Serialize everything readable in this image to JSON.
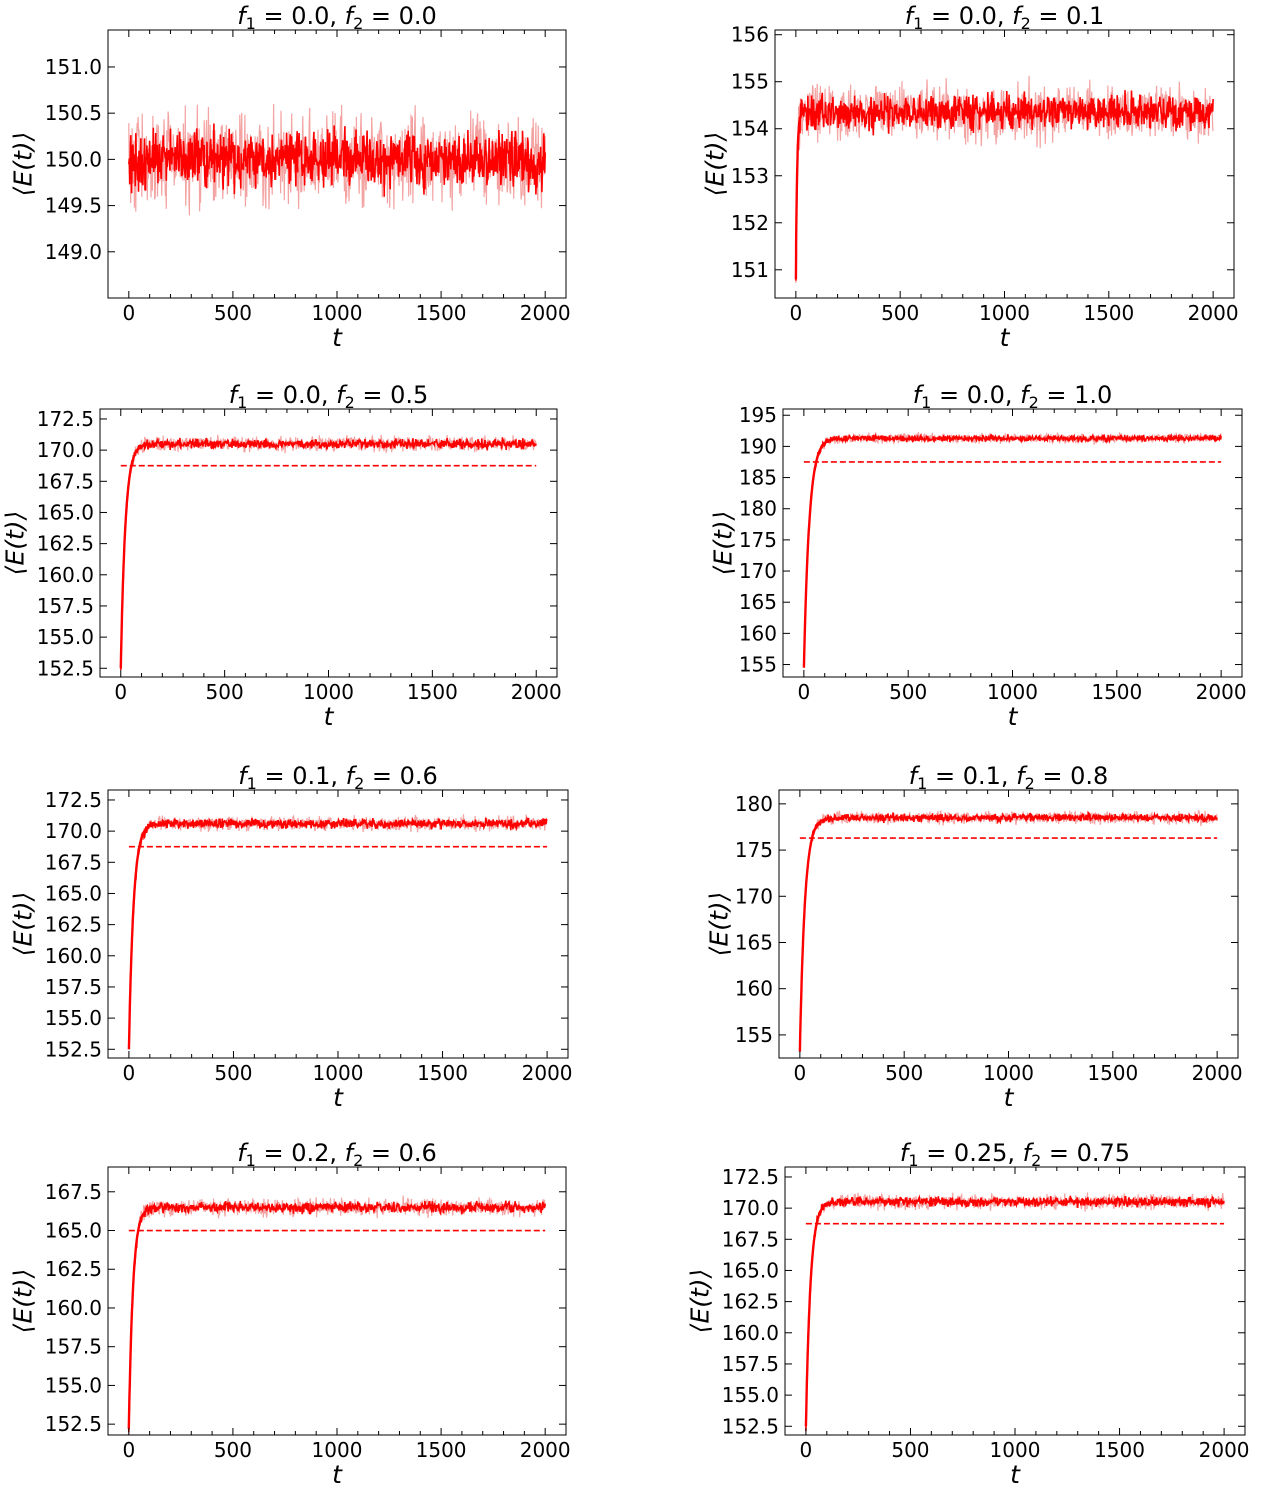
{
  "chart_data": [
    {
      "type": "line",
      "title_parts": [
        "f",
        "1",
        " = 0.0, ",
        "f",
        "2",
        " = 0.0"
      ],
      "xlabel": "t",
      "ylabel": "⟨E(t)⟩",
      "xlim": [
        -100,
        2100
      ],
      "ylim": [
        148.5,
        151.4
      ],
      "xticks": [
        0,
        500,
        1000,
        1500,
        2000
      ],
      "yticks": [
        149.0,
        149.5,
        150.0,
        150.5,
        151.0
      ],
      "ytick_labels": [
        "149.0",
        "149.5",
        "150.0",
        "150.5",
        "151.0"
      ],
      "series": [
        {
          "t_end": 2000,
          "start_value": 150.0,
          "plateau": 150.0,
          "tau": 1,
          "noise_core": 0.45,
          "noise_halo": 0.72,
          "color": "#ff0000"
        }
      ],
      "reference_line": null
    },
    {
      "type": "line",
      "title_parts": [
        "f",
        "1",
        " = 0.0, ",
        "f",
        "2",
        " = 0.1"
      ],
      "xlabel": "t",
      "ylabel": "⟨E(t)⟩",
      "xlim": [
        -100,
        2100
      ],
      "ylim": [
        150.4,
        156.1
      ],
      "xticks": [
        0,
        500,
        1000,
        1500,
        2000
      ],
      "yticks": [
        151,
        152,
        153,
        154,
        155,
        156
      ],
      "ytick_labels": [
        "151",
        "152",
        "153",
        "154",
        "155",
        "156"
      ],
      "series": [
        {
          "t_end": 2000,
          "start_value": 150.8,
          "plateau": 154.35,
          "tau": 6,
          "noise_core": 0.55,
          "noise_halo": 0.85,
          "color": "#ff0000"
        }
      ],
      "reference_line": null
    },
    {
      "type": "line",
      "title_parts": [
        "f",
        "1",
        " = 0.0, ",
        "f",
        "2",
        " = 0.5"
      ],
      "xlabel": "t",
      "ylabel": "⟨E(t)⟩",
      "xlim": [
        -100,
        2100
      ],
      "ylim": [
        151.8,
        173.3
      ],
      "xticks": [
        0,
        500,
        1000,
        1500,
        2000
      ],
      "yticks": [
        152.5,
        155.0,
        157.5,
        160.0,
        162.5,
        165.0,
        167.5,
        170.0,
        172.5
      ],
      "ytick_labels": [
        "152.5",
        "155.0",
        "157.5",
        "160.0",
        "162.5",
        "165.0",
        "167.5",
        "170.0",
        "172.5"
      ],
      "series": [
        {
          "t_end": 2000,
          "start_value": 152.5,
          "plateau": 170.5,
          "tau": 22,
          "noise_core": 0.55,
          "noise_halo": 0.85,
          "color": "#ff0000"
        }
      ],
      "reference_line": {
        "y": 168.75,
        "x_start": 0,
        "x_end": 2000,
        "style": "dashed",
        "color": "#ff0000"
      }
    },
    {
      "type": "line",
      "title_parts": [
        "f",
        "1",
        " = 0.0, ",
        "f",
        "2",
        " = 1.0"
      ],
      "xlabel": "t",
      "ylabel": "⟨E(t)⟩",
      "xlim": [
        -100,
        2100
      ],
      "ylim": [
        153.0,
        196.0
      ],
      "xticks": [
        0,
        500,
        1000,
        1500,
        2000
      ],
      "yticks": [
        155,
        160,
        165,
        170,
        175,
        180,
        185,
        190,
        195
      ],
      "ytick_labels": [
        "155",
        "160",
        "165",
        "170",
        "175",
        "180",
        "185",
        "190",
        "195"
      ],
      "series": [
        {
          "t_end": 2000,
          "start_value": 154.5,
          "plateau": 191.3,
          "tau": 26,
          "noise_core": 0.7,
          "noise_halo": 1.1,
          "color": "#ff0000"
        }
      ],
      "reference_line": {
        "y": 187.5,
        "x_start": 0,
        "x_end": 2000,
        "style": "dashed",
        "color": "#ff0000"
      }
    },
    {
      "type": "line",
      "title_parts": [
        "f",
        "1",
        " = 0.1, ",
        "f",
        "2",
        " = 0.6"
      ],
      "xlabel": "t",
      "ylabel": "⟨E(t)⟩",
      "xlim": [
        -100,
        2100
      ],
      "ylim": [
        151.8,
        173.3
      ],
      "xticks": [
        0,
        500,
        1000,
        1500,
        2000
      ],
      "yticks": [
        152.5,
        155.0,
        157.5,
        160.0,
        162.5,
        165.0,
        167.5,
        170.0,
        172.5
      ],
      "ytick_labels": [
        "152.5",
        "155.0",
        "157.5",
        "160.0",
        "162.5",
        "165.0",
        "167.5",
        "170.0",
        "172.5"
      ],
      "series": [
        {
          "t_end": 2000,
          "start_value": 152.5,
          "plateau": 170.6,
          "tau": 22,
          "noise_core": 0.55,
          "noise_halo": 0.85,
          "color": "#ff0000"
        }
      ],
      "reference_line": {
        "y": 168.75,
        "x_start": 0,
        "x_end": 2000,
        "style": "dashed",
        "color": "#ff0000"
      }
    },
    {
      "type": "line",
      "title_parts": [
        "f",
        "1",
        " = 0.1, ",
        "f",
        "2",
        " = 0.8"
      ],
      "xlabel": "t",
      "ylabel": "⟨E(t)⟩",
      "xlim": [
        -100,
        2100
      ],
      "ylim": [
        152.5,
        181.5
      ],
      "xticks": [
        0,
        500,
        1000,
        1500,
        2000
      ],
      "yticks": [
        155,
        160,
        165,
        170,
        175,
        180
      ],
      "ytick_labels": [
        "155",
        "160",
        "165",
        "170",
        "175",
        "180"
      ],
      "series": [
        {
          "t_end": 2000,
          "start_value": 153.2,
          "plateau": 178.5,
          "tau": 24,
          "noise_core": 0.6,
          "noise_halo": 0.95,
          "color": "#ff0000"
        }
      ],
      "reference_line": {
        "y": 176.3,
        "x_start": 0,
        "x_end": 2000,
        "style": "dashed",
        "color": "#ff0000"
      }
    },
    {
      "type": "line",
      "title_parts": [
        "f",
        "1",
        " = 0.2, ",
        "f",
        "2",
        " = 0.6"
      ],
      "xlabel": "t",
      "ylabel": "⟨E(t)⟩",
      "xlim": [
        -100,
        2100
      ],
      "ylim": [
        151.8,
        169.1
      ],
      "xticks": [
        0,
        500,
        1000,
        1500,
        2000
      ],
      "yticks": [
        152.5,
        155.0,
        157.5,
        160.0,
        162.5,
        165.0,
        167.5
      ],
      "ytick_labels": [
        "152.5",
        "155.0",
        "157.5",
        "160.0",
        "162.5",
        "165.0",
        "167.5"
      ],
      "series": [
        {
          "t_end": 2000,
          "start_value": 152.2,
          "plateau": 166.5,
          "tau": 20,
          "noise_core": 0.5,
          "noise_halo": 0.8,
          "color": "#ff0000"
        }
      ],
      "reference_line": {
        "y": 165.0,
        "x_start": 0,
        "x_end": 2000,
        "style": "dashed",
        "color": "#ff0000"
      }
    },
    {
      "type": "line",
      "title_parts": [
        "f",
        "1",
        " = 0.25, ",
        "f",
        "2",
        " = 0.75"
      ],
      "xlabel": "t",
      "ylabel": "⟨E(t)⟩",
      "xlim": [
        -100,
        2100
      ],
      "ylim": [
        151.8,
        173.3
      ],
      "xticks": [
        0,
        500,
        1000,
        1500,
        2000
      ],
      "yticks": [
        152.5,
        155.0,
        157.5,
        160.0,
        162.5,
        165.0,
        167.5,
        170.0,
        172.5
      ],
      "ytick_labels": [
        "152.5",
        "155.0",
        "157.5",
        "160.0",
        "162.5",
        "165.0",
        "167.5",
        "170.0",
        "172.5"
      ],
      "series": [
        {
          "t_end": 2000,
          "start_value": 152.5,
          "plateau": 170.5,
          "tau": 22,
          "noise_core": 0.55,
          "noise_halo": 0.85,
          "color": "#ff0000"
        }
      ],
      "reference_line": {
        "y": 168.75,
        "x_start": 0,
        "x_end": 2000,
        "style": "dashed",
        "color": "#ff0000"
      }
    }
  ]
}
